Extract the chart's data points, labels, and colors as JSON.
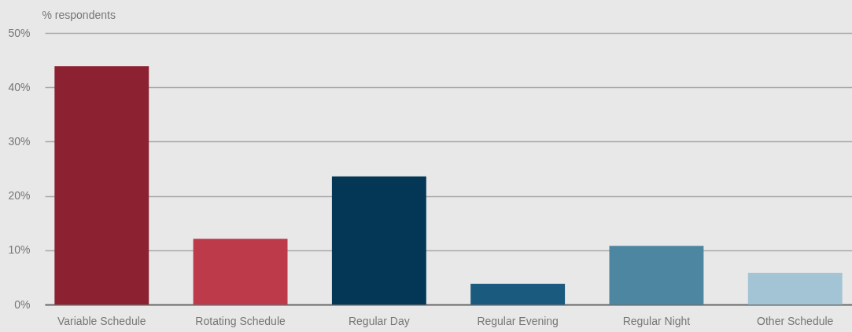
{
  "chart_data": {
    "type": "bar",
    "ylabel": "% respondents",
    "categories": [
      "Variable Schedule",
      "Rotating Schedule",
      "Regular Day",
      "Regular Evening",
      "Regular Night",
      "Other Schedule"
    ],
    "values": [
      43.9,
      12.1,
      23.6,
      3.8,
      10.8,
      5.8
    ],
    "colors": [
      "#8b2131",
      "#bc3a4a",
      "#033755",
      "#1a5a7e",
      "#4d86a1",
      "#a3c4d4"
    ],
    "ylim": [
      0,
      50
    ],
    "yticks": [
      {
        "value": 0,
        "label": "0%"
      },
      {
        "value": 10,
        "label": "10%"
      },
      {
        "value": 20,
        "label": "20%"
      },
      {
        "value": 30,
        "label": "30%"
      },
      {
        "value": 40,
        "label": "40%"
      },
      {
        "value": 50,
        "label": "50%"
      }
    ],
    "grid": "y"
  }
}
